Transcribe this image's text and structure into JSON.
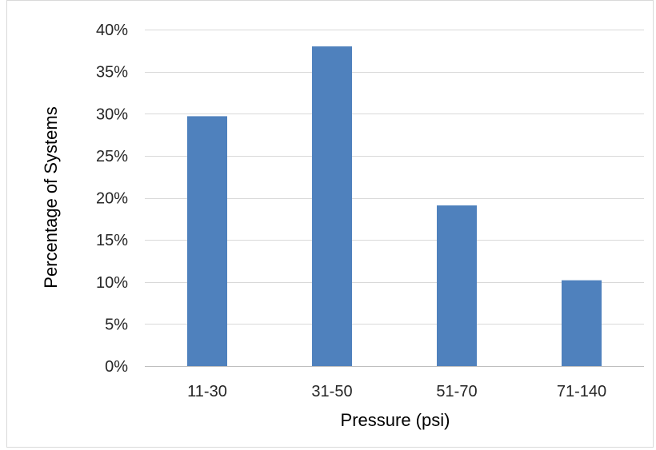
{
  "chart_data": {
    "type": "bar",
    "title": "",
    "xlabel": "Pressure (psi)",
    "ylabel": "Percentage of Systems",
    "categories": [
      "11-30",
      "31-50",
      "51-70",
      "71-140"
    ],
    "values": [
      29.7,
      38.0,
      19.1,
      10.2
    ],
    "ylim": [
      0,
      40
    ],
    "ytick_step": 5,
    "ytick_suffix": "%",
    "grid": true,
    "legend": "none",
    "bar_color": "#4f81bd"
  }
}
